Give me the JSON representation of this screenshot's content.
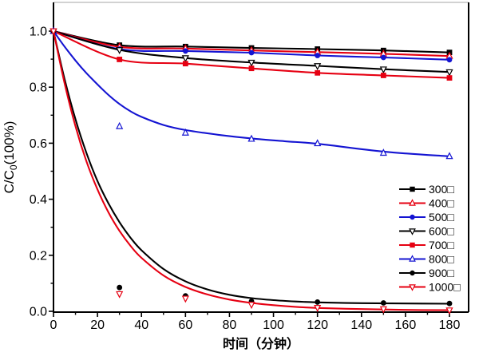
{
  "chart_data": {
    "type": "line",
    "title": "",
    "xlabel": "时间（分钟）",
    "ylabel": {
      "pre": "C/C",
      "sub": "0",
      "post": "(100%)"
    },
    "xlim": [
      0,
      188.6
    ],
    "ylim": [
      0,
      1.105
    ],
    "grid": false,
    "legend_position": "inside-right-bottom",
    "x_major_ticks": [
      0,
      20,
      40,
      60,
      80,
      100,
      120,
      140,
      160,
      180
    ],
    "x_minor_ticks": [
      10,
      30,
      50,
      70,
      90,
      110,
      130,
      150,
      170
    ],
    "y_major_tick_values": [
      0.0,
      0.2,
      0.4,
      0.6,
      0.8,
      1.0
    ],
    "y_major_tick_labels": [
      "0.0",
      "0.2",
      "0.4",
      "0.6",
      "0.8",
      "1.0"
    ],
    "y_minor_ticks": [
      0.1,
      0.3,
      0.5,
      0.7,
      0.9
    ],
    "colors": {
      "black": "#000000",
      "red": "#e60012",
      "blue": "#1414d2",
      "frame_top": "#c4c4c4"
    },
    "x_data": [
      0,
      30,
      60,
      90,
      120,
      150,
      180
    ],
    "series": [
      {
        "name": "300□",
        "color": "#000000",
        "marker": "square-filled",
        "values": [
          1.0,
          0.95,
          0.945,
          0.94,
          0.936,
          0.931,
          0.924
        ]
      },
      {
        "name": "400□",
        "color": "#e60012",
        "marker": "triangle-up-open",
        "values": [
          1.0,
          0.944,
          0.938,
          0.931,
          0.925,
          0.919,
          0.911
        ]
      },
      {
        "name": "500□",
        "color": "#1414d2",
        "marker": "circle-filled",
        "values": [
          1.0,
          0.936,
          0.929,
          0.923,
          0.913,
          0.906,
          0.898
        ]
      },
      {
        "name": "600□",
        "color": "#000000",
        "marker": "triangle-down-open",
        "values": [
          1.0,
          0.933,
          0.904,
          0.888,
          0.876,
          0.864,
          0.854
        ]
      },
      {
        "name": "700□",
        "color": "#e60012",
        "marker": "square-filled",
        "values": [
          1.0,
          0.899,
          0.884,
          0.867,
          0.851,
          0.842,
          0.833
        ]
      },
      {
        "name": "800□",
        "color": "#1414d2",
        "marker": "triangle-up-open",
        "values": [
          1.0,
          0.66,
          0.637,
          0.615,
          0.599,
          0.565,
          0.553
        ],
        "fit_line": {
          "x": [
            0,
            5,
            10,
            15,
            20,
            25,
            30,
            35,
            40,
            50,
            60,
            75,
            90,
            105,
            120,
            150,
            180
          ],
          "y": [
            1.0,
            0.945,
            0.895,
            0.85,
            0.81,
            0.772,
            0.74,
            0.714,
            0.694,
            0.665,
            0.647,
            0.63,
            0.617,
            0.607,
            0.598,
            0.57,
            0.553
          ]
        }
      },
      {
        "name": "900□",
        "color": "#000000",
        "marker": "circle-filled",
        "values": [
          1.0,
          0.085,
          0.055,
          0.036,
          0.033,
          0.03,
          0.028
        ],
        "fit_line": {
          "x": [
            0,
            5,
            10,
            15,
            20,
            25,
            30,
            35,
            40,
            50,
            60,
            70,
            80,
            90,
            100,
            110,
            120,
            140,
            160,
            180
          ],
          "y": [
            1.0,
            0.83,
            0.685,
            0.565,
            0.465,
            0.385,
            0.318,
            0.263,
            0.218,
            0.151,
            0.107,
            0.078,
            0.059,
            0.047,
            0.04,
            0.035,
            0.032,
            0.029,
            0.028,
            0.027
          ]
        }
      },
      {
        "name": "1000□",
        "color": "#e60012",
        "marker": "triangle-down-open",
        "values": [
          1.0,
          0.062,
          0.046,
          0.024,
          0.013,
          0.008,
          0.004
        ],
        "fit_line": {
          "x": [
            0,
            5,
            10,
            15,
            20,
            25,
            30,
            35,
            40,
            50,
            60,
            70,
            80,
            90,
            100,
            110,
            120,
            140,
            160,
            180
          ],
          "y": [
            1.0,
            0.815,
            0.66,
            0.535,
            0.435,
            0.353,
            0.287,
            0.234,
            0.191,
            0.128,
            0.087,
            0.06,
            0.042,
            0.03,
            0.022,
            0.016,
            0.012,
            0.008,
            0.005,
            0.004
          ]
        }
      }
    ]
  }
}
